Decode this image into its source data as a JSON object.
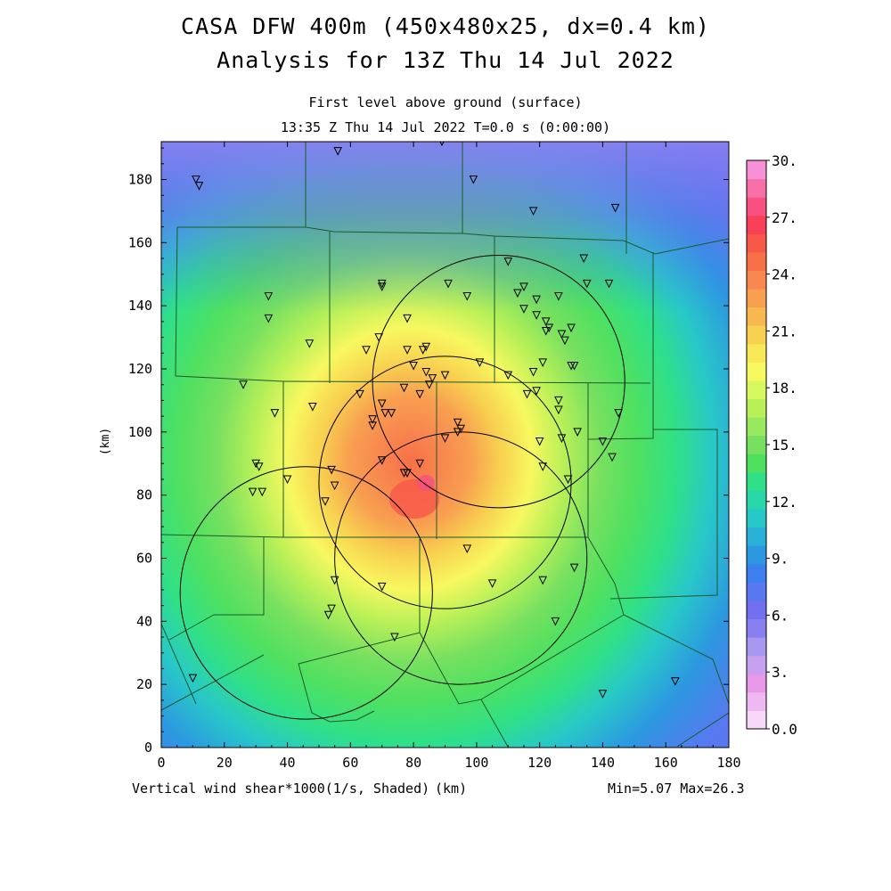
{
  "title": {
    "line1": "CASA DFW 400m (450x480x25, dx=0.4 km)",
    "line2": "Analysis for 13Z Thu 14 Jul 2022"
  },
  "subtitle": {
    "level": "First level above ground (surface)",
    "time": "13:35 Z Thu 14 Jul 2022    T=0.0 s (0:00:00)"
  },
  "map": {
    "x_axis_unit": "(km)",
    "y_axis_unit": "(km)",
    "x_ticks": [
      "0",
      "20",
      "40",
      "60",
      "80",
      "100",
      "120",
      "140",
      "160",
      "180"
    ],
    "y_ticks": [
      "0",
      "20",
      "40",
      "60",
      "80",
      "100",
      "120",
      "140",
      "160",
      "180"
    ],
    "field_label": "Vertical wind shear*1000(1/s, Shaded)",
    "min_max": "Min=5.07 Max=26.3",
    "field_min": 5.07,
    "field_max": 26.3
  },
  "colorbar": {
    "labels": [
      "0.0",
      "3.",
      "6.",
      "9.",
      "12.",
      "15.",
      "18.",
      "21.",
      "24.",
      "27.",
      "30."
    ],
    "colors": [
      "#f8d8f8",
      "#f0b8f0",
      "#e898e8",
      "#c8a0f0",
      "#a898f0",
      "#8880f0",
      "#7070f0",
      "#5878f0",
      "#3c80f0",
      "#2c98e0",
      "#28b0d8",
      "#28c8c8",
      "#28d8a8",
      "#30e088",
      "#50e060",
      "#78e060",
      "#98e860",
      "#b8f058",
      "#d8f860",
      "#f8f860",
      "#f8e858",
      "#f8d050",
      "#f8b850",
      "#f8a050",
      "#f88850",
      "#f87048",
      "#f85848",
      "#f84058",
      "#f85080",
      "#f870a8",
      "#f890d8"
    ],
    "max": 30
  },
  "radars": [
    {
      "cx": 107,
      "cy": 116
    },
    {
      "cx": 90,
      "cy": 84
    },
    {
      "cx": 95,
      "cy": 60
    },
    {
      "cx": 46,
      "cy": 49
    }
  ],
  "stations": [
    [
      56,
      189
    ],
    [
      89,
      192
    ],
    [
      11,
      180
    ],
    [
      12,
      178
    ],
    [
      99,
      180
    ],
    [
      118,
      170
    ],
    [
      144,
      171
    ],
    [
      34,
      143
    ],
    [
      34,
      136
    ],
    [
      70,
      147
    ],
    [
      70,
      146
    ],
    [
      91,
      147
    ],
    [
      97,
      143
    ],
    [
      110,
      154
    ],
    [
      113,
      144
    ],
    [
      115,
      146
    ],
    [
      119,
      142
    ],
    [
      126,
      143
    ],
    [
      134,
      155
    ],
    [
      135,
      147
    ],
    [
      142,
      147
    ],
    [
      47,
      128
    ],
    [
      65,
      126
    ],
    [
      69,
      130
    ],
    [
      78,
      136
    ],
    [
      78,
      126
    ],
    [
      84,
      127
    ],
    [
      83,
      126
    ],
    [
      115,
      139
    ],
    [
      119,
      137
    ],
    [
      122,
      135
    ],
    [
      122,
      132
    ],
    [
      123,
      133
    ],
    [
      127,
      131
    ],
    [
      128,
      129
    ],
    [
      130,
      133
    ],
    [
      26,
      115
    ],
    [
      80,
      121
    ],
    [
      84,
      119
    ],
    [
      85,
      115
    ],
    [
      90,
      118
    ],
    [
      101,
      122
    ],
    [
      110,
      118
    ],
    [
      118,
      119
    ],
    [
      121,
      122
    ],
    [
      130,
      121
    ],
    [
      131,
      121
    ],
    [
      36,
      106
    ],
    [
      48,
      108
    ],
    [
      63,
      112
    ],
    [
      67,
      104
    ],
    [
      67,
      102
    ],
    [
      70,
      109
    ],
    [
      71,
      106
    ],
    [
      73,
      106
    ],
    [
      77,
      114
    ],
    [
      82,
      112
    ],
    [
      86,
      117
    ],
    [
      94,
      103
    ],
    [
      94,
      100
    ],
    [
      95,
      101
    ],
    [
      90,
      98
    ],
    [
      116,
      112
    ],
    [
      119,
      113
    ],
    [
      126,
      110
    ],
    [
      126,
      107
    ],
    [
      30,
      90
    ],
    [
      31,
      89
    ],
    [
      29,
      81
    ],
    [
      32,
      81
    ],
    [
      40,
      85
    ],
    [
      54,
      88
    ],
    [
      55,
      83
    ],
    [
      52,
      78
    ],
    [
      70,
      91
    ],
    [
      77,
      87
    ],
    [
      78,
      87
    ],
    [
      82,
      90
    ],
    [
      120,
      97
    ],
    [
      121,
      89
    ],
    [
      127,
      98
    ],
    [
      129,
      85
    ],
    [
      132,
      100
    ],
    [
      140,
      97
    ],
    [
      143,
      92
    ],
    [
      145,
      106
    ],
    [
      97,
      63
    ],
    [
      55,
      53
    ],
    [
      70,
      51
    ],
    [
      105,
      52
    ],
    [
      121,
      53
    ],
    [
      131,
      57
    ],
    [
      53,
      42
    ],
    [
      54,
      44
    ],
    [
      74,
      35
    ],
    [
      125,
      40
    ],
    [
      10,
      22
    ],
    [
      140,
      17
    ],
    [
      163,
      21
    ]
  ]
}
